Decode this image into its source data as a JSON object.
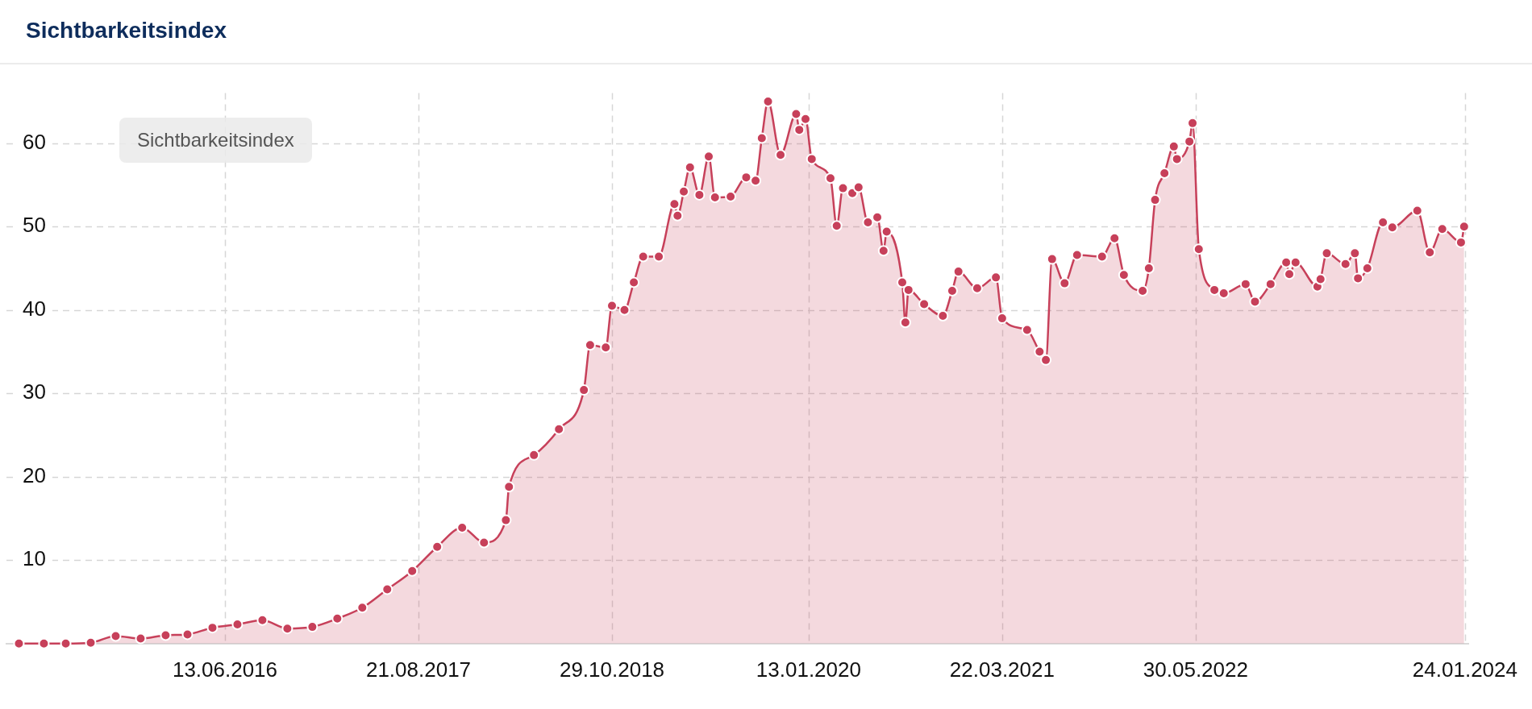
{
  "chart_data": {
    "type": "area",
    "title": "Sichtbarkeitsindex",
    "annotations": [
      "Sichtbarkeitsindex"
    ],
    "x": [
      "2015-03-09",
      "2015-05-04",
      "2015-06-22",
      "2015-08-17",
      "2015-10-12",
      "2015-12-07",
      "2016-02-01",
      "2016-03-21",
      "2016-05-16",
      "2016-07-11",
      "2016-09-05",
      "2016-10-31",
      "2016-12-26",
      "2017-02-20",
      "2017-04-17",
      "2017-06-12",
      "2017-08-07",
      "2017-10-02",
      "2017-11-27",
      "2018-01-15",
      "2018-03-05",
      "2018-03-12",
      "2018-05-07",
      "2018-07-02",
      "2018-08-27",
      "2018-09-10",
      "2018-10-15",
      "2018-10-29",
      "2018-11-26",
      "2018-12-17",
      "2019-01-07",
      "2019-02-11",
      "2019-03-18",
      "2019-03-25",
      "2019-04-08",
      "2019-04-22",
      "2019-05-13",
      "2019-06-03",
      "2019-06-17",
      "2019-07-22",
      "2019-08-26",
      "2019-09-16",
      "2019-09-30",
      "2019-10-14",
      "2019-11-11",
      "2019-12-16",
      "2019-12-23",
      "2020-01-06",
      "2020-01-20",
      "2020-03-02",
      "2020-03-16",
      "2020-03-30",
      "2020-04-20",
      "2020-05-04",
      "2020-05-25",
      "2020-06-15",
      "2020-06-29",
      "2020-07-06",
      "2020-08-10",
      "2020-08-17",
      "2020-08-24",
      "2020-09-28",
      "2020-11-09",
      "2020-11-30",
      "2020-12-14",
      "2021-01-25",
      "2021-03-08",
      "2021-03-22",
      "2021-05-17",
      "2021-06-14",
      "2021-06-28",
      "2021-07-12",
      "2021-08-09",
      "2021-09-06",
      "2021-11-01",
      "2021-11-29",
      "2021-12-20",
      "2022-01-31",
      "2022-02-14",
      "2022-02-28",
      "2022-03-21",
      "2022-04-11",
      "2022-04-18",
      "2022-05-16",
      "2022-05-23",
      "2022-06-06",
      "2022-07-11",
      "2022-08-01",
      "2022-09-19",
      "2022-10-10",
      "2022-11-14",
      "2022-12-19",
      "2022-12-26",
      "2023-01-09",
      "2023-02-27",
      "2023-03-06",
      "2023-03-20",
      "2023-05-01",
      "2023-05-22",
      "2023-05-29",
      "2023-06-19",
      "2023-07-24",
      "2023-08-14",
      "2023-10-09",
      "2023-11-06",
      "2023-12-04",
      "2024-01-15",
      "2024-01-22"
    ],
    "values": [
      0,
      0,
      0,
      0.1,
      0.9,
      0.6,
      1.0,
      1.1,
      1.9,
      2.3,
      2.8,
      1.8,
      2.0,
      3.0,
      4.3,
      6.5,
      8.7,
      11.6,
      13.9,
      12.1,
      14.8,
      18.8,
      22.6,
      25.7,
      30.4,
      35.8,
      35.5,
      40.5,
      40.0,
      43.3,
      46.4,
      46.4,
      52.7,
      51.3,
      54.2,
      57.1,
      53.8,
      58.4,
      53.5,
      53.6,
      55.9,
      55.5,
      60.6,
      65.0,
      58.6,
      63.5,
      61.6,
      62.9,
      58.1,
      55.8,
      50.1,
      54.6,
      54.0,
      54.7,
      50.5,
      51.1,
      47.1,
      49.4,
      43.3,
      38.5,
      42.4,
      40.7,
      39.3,
      42.3,
      44.6,
      42.6,
      43.9,
      39.0,
      37.6,
      35.0,
      34.0,
      46.1,
      43.2,
      46.6,
      46.4,
      48.6,
      44.2,
      42.3,
      45.0,
      53.2,
      56.4,
      59.6,
      58.1,
      60.2,
      62.4,
      47.3,
      42.4,
      42.0,
      43.1,
      41.0,
      43.1,
      45.7,
      44.3,
      45.7,
      42.8,
      43.7,
      46.8,
      45.5,
      46.8,
      43.8,
      45.0,
      50.5,
      49.9,
      51.9,
      46.9,
      49.7,
      48.1,
      50.0
    ],
    "color": "#c7405a",
    "xlim": [
      "2015-02-09",
      "2024-02-01"
    ],
    "xticks": [
      {
        "value": "2016-06-13",
        "label": "13.06.2016"
      },
      {
        "value": "2017-08-21",
        "label": "21.08.2017"
      },
      {
        "value": "2018-10-29",
        "label": "29.10.2018"
      },
      {
        "value": "2020-01-13",
        "label": "13.01.2020"
      },
      {
        "value": "2021-03-22",
        "label": "22.03.2021"
      },
      {
        "value": "2022-05-30",
        "label": "30.05.2022"
      },
      {
        "value": "2024-01-24",
        "label": "24.01.2024"
      }
    ],
    "ylim": [
      0,
      66
    ],
    "yticks": [
      10,
      20,
      30,
      40,
      50,
      60
    ],
    "grid": true,
    "marker": "circle"
  }
}
